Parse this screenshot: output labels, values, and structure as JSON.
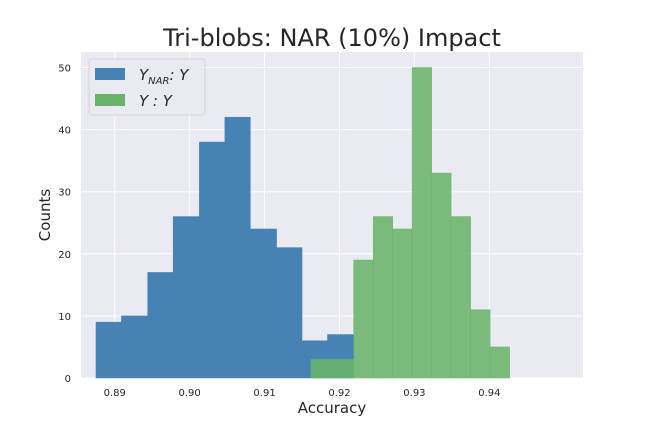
{
  "chart_data": {
    "type": "histogram",
    "title": "Tri-blobs: NAR (10%) Impact",
    "xlabel": "Accuracy",
    "ylabel": "Counts",
    "xlim": [
      0.8855,
      0.9525
    ],
    "ylim": [
      0,
      52.5
    ],
    "xticks": [
      0.89,
      0.9,
      0.91,
      0.92,
      0.93,
      0.94
    ],
    "xtick_labels": [
      "0.89",
      "0.90",
      "0.91",
      "0.92",
      "0.93",
      "0.94"
    ],
    "yticks": [
      0,
      10,
      20,
      30,
      40,
      50
    ],
    "ytick_labels": [
      "0",
      "10",
      "20",
      "30",
      "40",
      "50"
    ],
    "grid": true,
    "legend_position": "top-left",
    "series": [
      {
        "legend_main": "Y",
        "legend_sub": "NAR",
        "legend_tail": ": Y",
        "color": "#4682b4",
        "bin_edges": [
          0.8875,
          0.8909,
          0.8944,
          0.8978,
          0.9013,
          0.9047,
          0.9081,
          0.9116,
          0.915,
          0.9184,
          0.9219
        ],
        "counts": [
          9,
          10,
          17,
          26,
          38,
          42,
          24,
          21,
          6,
          7
        ]
      },
      {
        "legend_main": "Y : Y",
        "color": "#6ab46a",
        "bin_edges": [
          0.9162,
          0.9219,
          0.9245,
          0.9271,
          0.9297,
          0.9323,
          0.9349,
          0.9375,
          0.9401,
          0.9427
        ],
        "counts": [
          3,
          19,
          26,
          24,
          50,
          33,
          26,
          11,
          5
        ]
      }
    ]
  }
}
